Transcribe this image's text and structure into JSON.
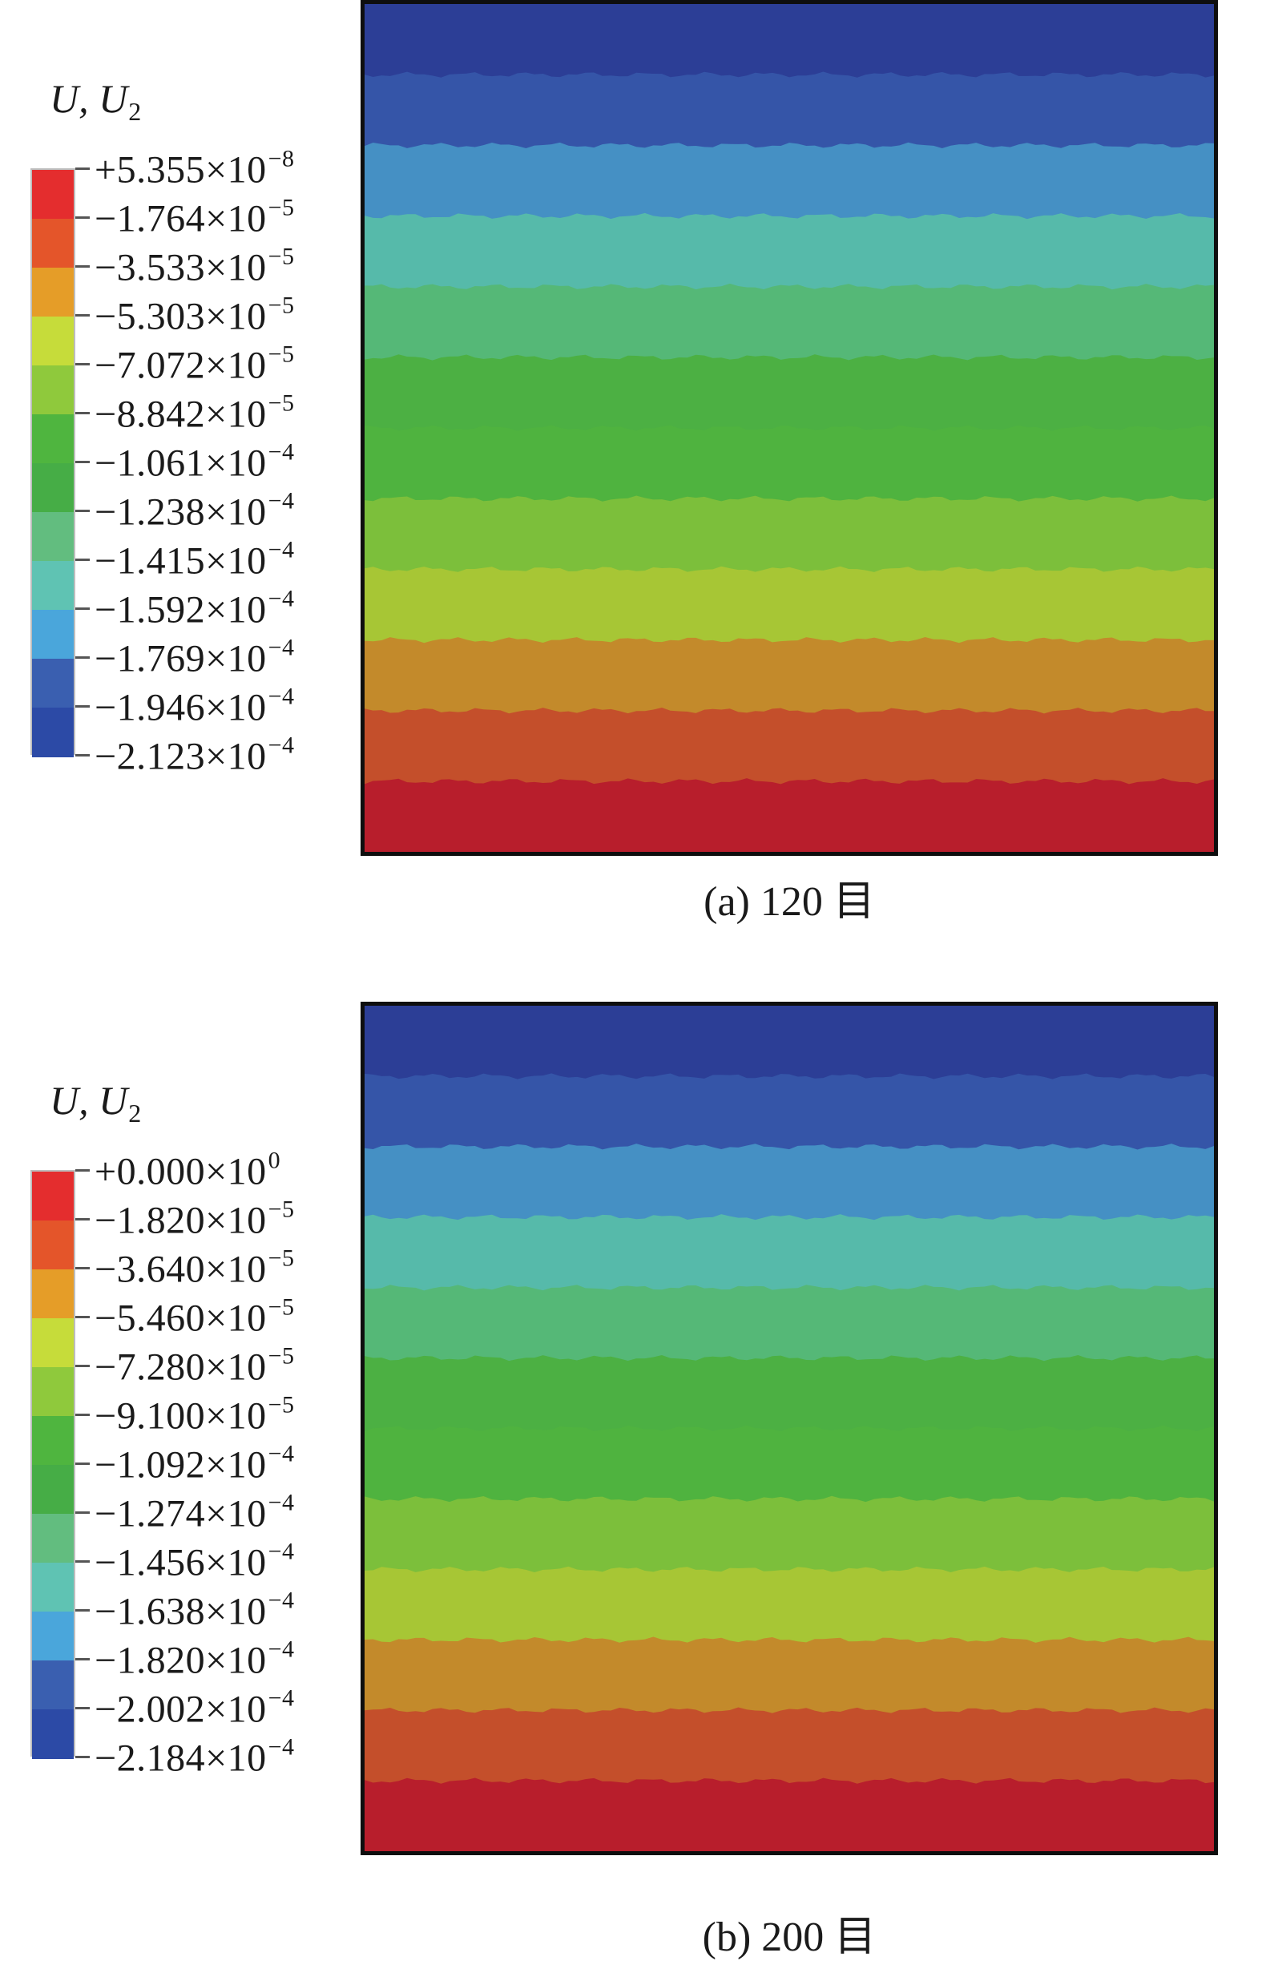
{
  "panels": [
    {
      "id": "a",
      "caption": "(a) 120 目",
      "legend": {
        "title": "U, U",
        "title_subscript": "2",
        "ticks": [
          {
            "mantissa": "+5.355×10",
            "exponent": "−8"
          },
          {
            "mantissa": "−1.764×10",
            "exponent": "−5"
          },
          {
            "mantissa": "−3.533×10",
            "exponent": "−5"
          },
          {
            "mantissa": "−5.303×10",
            "exponent": "−5"
          },
          {
            "mantissa": "−7.072×10",
            "exponent": "−5"
          },
          {
            "mantissa": "−8.842×10",
            "exponent": "−5"
          },
          {
            "mantissa": "−1.061×10",
            "exponent": "−4"
          },
          {
            "mantissa": "−1.238×10",
            "exponent": "−4"
          },
          {
            "mantissa": "−1.415×10",
            "exponent": "−4"
          },
          {
            "mantissa": "−1.592×10",
            "exponent": "−4"
          },
          {
            "mantissa": "−1.769×10",
            "exponent": "−4"
          },
          {
            "mantissa": "−1.946×10",
            "exponent": "−4"
          },
          {
            "mantissa": "−2.123×10",
            "exponent": "−4"
          }
        ]
      }
    },
    {
      "id": "b",
      "caption": "(b) 200 目",
      "legend": {
        "title": "U, U",
        "title_subscript": "2",
        "ticks": [
          {
            "mantissa": "+0.000×10",
            "exponent": "0"
          },
          {
            "mantissa": "−1.820×10",
            "exponent": "−5"
          },
          {
            "mantissa": "−3.640×10",
            "exponent": "−5"
          },
          {
            "mantissa": "−5.460×10",
            "exponent": "−5"
          },
          {
            "mantissa": "−7.280×10",
            "exponent": "−5"
          },
          {
            "mantissa": "−9.100×10",
            "exponent": "−5"
          },
          {
            "mantissa": "−1.092×10",
            "exponent": "−4"
          },
          {
            "mantissa": "−1.274×10",
            "exponent": "−4"
          },
          {
            "mantissa": "−1.456×10",
            "exponent": "−4"
          },
          {
            "mantissa": "−1.638×10",
            "exponent": "−4"
          },
          {
            "mantissa": "−1.820×10",
            "exponent": "−4"
          },
          {
            "mantissa": "−2.002×10",
            "exponent": "−4"
          },
          {
            "mantissa": "−2.184×10",
            "exponent": "−4"
          }
        ]
      }
    }
  ],
  "colors": {
    "legend_scale_top_to_bottom": [
      "#e42d2e",
      "#e4552a",
      "#e59d28",
      "#c6dc3a",
      "#8fc93c",
      "#4fb53f",
      "#46ad46",
      "#62bd7f",
      "#5fc3b3",
      "#4aa6db",
      "#3a5fb0",
      "#2c4aa6"
    ],
    "contour_bands_top_to_bottom": [
      "#2c3e96",
      "#3555a8",
      "#4590c4",
      "#56baaa",
      "#55b877",
      "#4cb043",
      "#4fb33f",
      "#7cbf3b",
      "#a7c635",
      "#c38a2b",
      "#c44f2b",
      "#b81e2c"
    ],
    "plot_frame": "#0e0e0e"
  }
}
